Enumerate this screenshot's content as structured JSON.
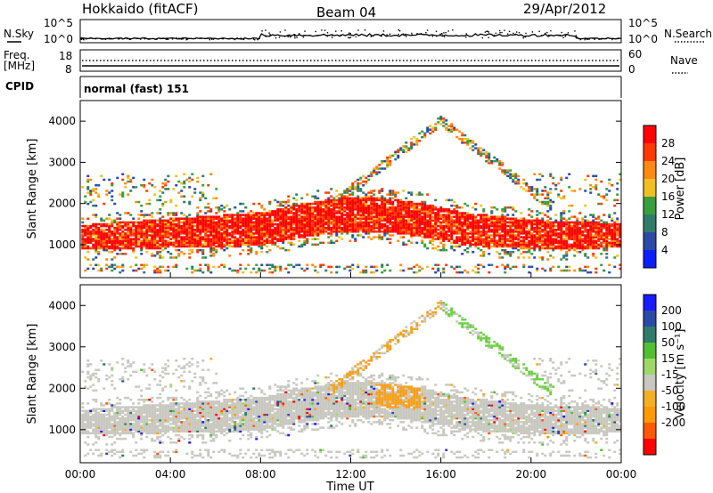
{
  "header": {
    "title": "Hokkaido (fitACF)",
    "beam": "Beam 04",
    "date": "29/Apr/2012"
  },
  "top_panels": {
    "noise": {
      "left_label": "N.Sky",
      "right_label": "N.Search",
      "left_ticks": [
        "10^5",
        "10^0"
      ],
      "right_ticks": [
        "10^5",
        "10^0"
      ]
    },
    "freq": {
      "left_label_1": "Freq.",
      "left_label_2": "[MHz]",
      "right_label": "Nave",
      "left_ticks": [
        "18",
        "8"
      ],
      "right_ticks": [
        "60",
        "0"
      ]
    },
    "cpid": {
      "label": "CPID",
      "value": "normal (fast) 151"
    }
  },
  "chart_data": [
    {
      "type": "heatmap",
      "name": "power",
      "ylabel": "Slant Range [km]",
      "xlabel": "",
      "xlim": [
        0,
        24
      ],
      "ylim": [
        200,
        4500
      ],
      "yticks": [
        "1000",
        "2000",
        "3000",
        "4000"
      ],
      "colorbar": {
        "label": "Power [dB]",
        "ticks": [
          "4",
          "8",
          "12",
          "16",
          "20",
          "24",
          "28"
        ],
        "range": [
          0,
          32
        ],
        "colors": [
          "#0a1eff",
          "#2a4aa8",
          "#2f7c6a",
          "#3a9e3c",
          "#f0c020",
          "#ff8a10",
          "#ff3a00",
          "#ff0000"
        ]
      }
    },
    {
      "type": "heatmap",
      "name": "velocity",
      "ylabel": "Slant Range [km]",
      "xlabel": "Time UT",
      "xlim": [
        0,
        24
      ],
      "ylim": [
        200,
        4500
      ],
      "yticks": [
        "1000",
        "2000",
        "3000",
        "4000"
      ],
      "xticks": [
        "00:00",
        "04:00",
        "08:00",
        "12:00",
        "16:00",
        "20:00",
        "00:00"
      ],
      "colorbar": {
        "label": "Velocity [m s⁻¹]",
        "ticks": [
          "200",
          "100",
          "50",
          "15",
          "-15",
          "-50",
          "-100",
          "-200"
        ],
        "range": [
          -250,
          250
        ],
        "colors": [
          "#ff0000",
          "#ff5a00",
          "#ff9a00",
          "#f5b020",
          "#c8c8c0",
          "#9fd86a",
          "#50c030",
          "#2f7c6a",
          "#2a4aa8",
          "#1a1aff"
        ]
      }
    }
  ],
  "colors": {
    "background_echo": "#c8c8c0"
  }
}
